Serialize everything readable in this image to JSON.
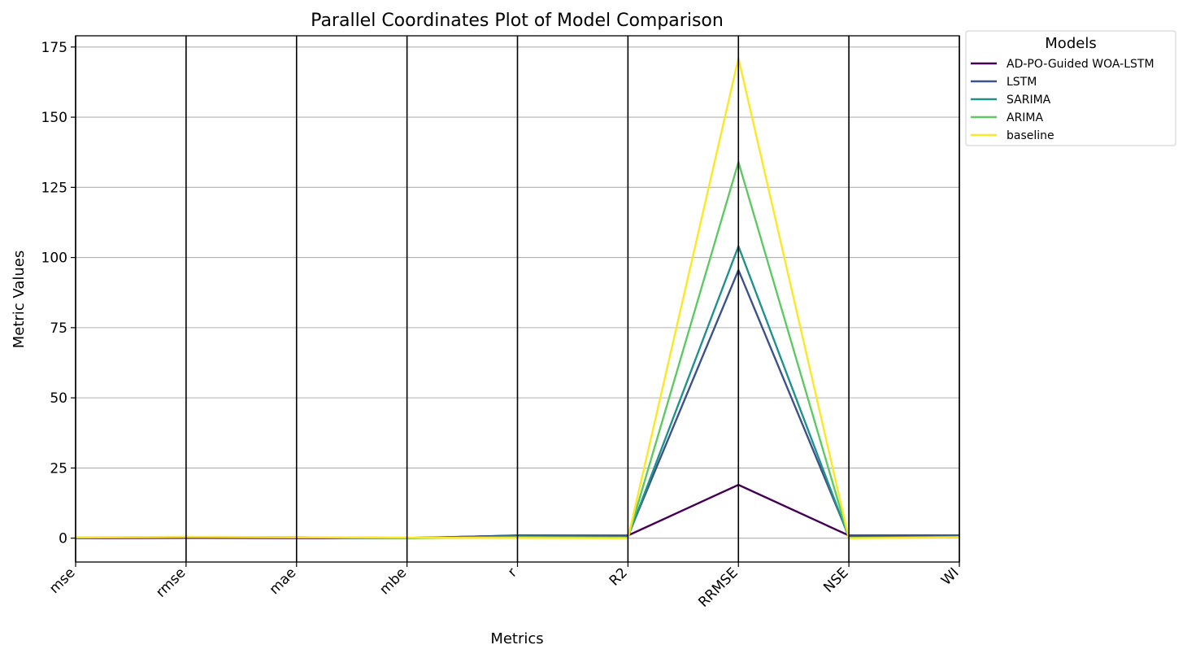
{
  "chart_data": {
    "type": "parallel-coordinates",
    "title": "Parallel Coordinates Plot of Model Comparison",
    "xlabel": "Metrics",
    "ylabel": "Metric Values",
    "ylim": [
      -8.5,
      179
    ],
    "yticks": [
      0,
      25,
      50,
      75,
      100,
      125,
      150,
      175
    ],
    "grid": true,
    "legend_title": "Models",
    "legend_position": "outside-top-right",
    "categories": [
      "mse",
      "rmse",
      "mae",
      "mbe",
      "r",
      "R2",
      "RRMSE",
      "NSE",
      "WI"
    ],
    "series": [
      {
        "name": "AD-PO-Guided WOA-LSTM",
        "color": "#440154",
        "values": [
          0.0,
          0.1,
          0.05,
          0.0,
          0.98,
          0.96,
          19,
          0.95,
          0.99
        ]
      },
      {
        "name": "LSTM",
        "color": "#3b528b",
        "values": [
          0.2,
          0.4,
          0.3,
          0.1,
          0.9,
          0.8,
          95.5,
          0.7,
          0.9
        ]
      },
      {
        "name": "SARIMA",
        "color": "#21918c",
        "values": [
          0.2,
          0.4,
          0.3,
          0.1,
          0.6,
          0.4,
          104,
          0.2,
          0.5
        ]
      },
      {
        "name": "ARIMA",
        "color": "#5ec962",
        "values": [
          0.2,
          0.4,
          0.3,
          0.0,
          0.3,
          0.1,
          134,
          0.1,
          0.4
        ]
      },
      {
        "name": "baseline",
        "color": "#fde725",
        "values": [
          0.3,
          0.5,
          0.35,
          0.2,
          0.1,
          0.0,
          171,
          0.0,
          0.3
        ]
      }
    ]
  }
}
